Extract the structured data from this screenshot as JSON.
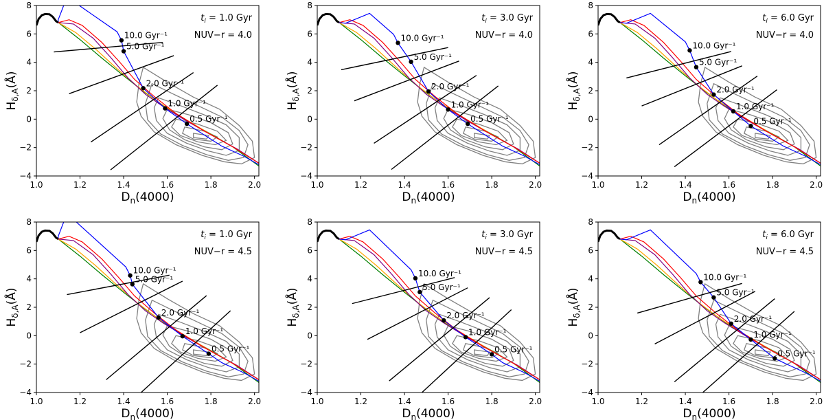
{
  "chart_data": {
    "type": "line",
    "panels": [
      {
        "ti": "1.0",
        "nuvr": "4.0",
        "dots": [
          [
            1.39,
            5.55
          ],
          [
            1.4,
            4.78
          ],
          [
            1.49,
            2.18
          ],
          [
            1.59,
            0.76
          ],
          [
            1.69,
            -0.33
          ]
        ],
        "cuts": [
          [
            1.08,
            4.73,
            1.58,
            5.4
          ],
          [
            1.15,
            1.79,
            1.63,
            4.47
          ],
          [
            1.25,
            -1.61,
            1.72,
            3.28
          ],
          [
            1.34,
            -3.57,
            1.83,
            2.39
          ]
        ]
      },
      {
        "ti": "3.0",
        "nuvr": "4.0",
        "dots": [
          [
            1.37,
            5.37
          ],
          [
            1.43,
            4.04
          ],
          [
            1.51,
            1.95
          ],
          [
            1.6,
            0.68
          ],
          [
            1.69,
            -0.33
          ]
        ],
        "cuts": [
          [
            1.11,
            3.48,
            1.6,
            5.04
          ],
          [
            1.17,
            1.29,
            1.65,
            4.09
          ],
          [
            1.26,
            -1.7,
            1.73,
            3.08
          ],
          [
            1.34,
            -3.54,
            1.83,
            2.34
          ]
        ]
      },
      {
        "ti": "6.0",
        "nuvr": "4.0",
        "dots": [
          [
            1.42,
            4.84
          ],
          [
            1.45,
            3.66
          ],
          [
            1.53,
            1.73
          ],
          [
            1.62,
            0.55
          ],
          [
            1.7,
            -0.48
          ]
        ],
        "cuts": [
          [
            1.13,
            2.9,
            1.61,
            4.76
          ],
          [
            1.2,
            0.93,
            1.66,
            3.75
          ],
          [
            1.28,
            -1.8,
            1.73,
            3.03
          ],
          [
            1.35,
            -3.35,
            1.82,
            2.07
          ]
        ]
      },
      {
        "ti": "1.0",
        "nuvr": "4.5",
        "dots": [
          [
            1.43,
            4.24
          ],
          [
            1.44,
            3.62
          ],
          [
            1.56,
            1.28
          ],
          [
            1.67,
            -0.04
          ],
          [
            1.79,
            -1.27
          ]
        ],
        "cuts": [
          [
            1.14,
            2.89,
            1.61,
            4.26
          ],
          [
            1.2,
            0.21,
            1.67,
            3.84
          ],
          [
            1.32,
            -3.1,
            1.78,
            2.82
          ],
          [
            1.48,
            -4.0,
            1.89,
            1.76
          ]
        ]
      },
      {
        "ti": "3.0",
        "nuvr": "4.5",
        "dots": [
          [
            1.45,
            4.04
          ],
          [
            1.47,
            3.07
          ],
          [
            1.58,
            1.08
          ],
          [
            1.68,
            -0.1
          ],
          [
            1.8,
            -1.31
          ]
        ],
        "cuts": [
          [
            1.16,
            2.26,
            1.63,
            4.09
          ],
          [
            1.23,
            -0.26,
            1.69,
            3.37
          ],
          [
            1.33,
            -3.18,
            1.79,
            2.68
          ],
          [
            1.48,
            -4.0,
            1.89,
            1.83
          ]
        ]
      },
      {
        "ti": "6.0",
        "nuvr": "4.5",
        "dots": [
          [
            1.47,
            3.77
          ],
          [
            1.53,
            2.69
          ],
          [
            1.61,
            0.85
          ],
          [
            1.7,
            -0.27
          ],
          [
            1.81,
            -1.6
          ]
        ],
        "cuts": [
          [
            1.18,
            1.59,
            1.66,
            3.68
          ],
          [
            1.26,
            -0.58,
            1.72,
            3.12
          ],
          [
            1.35,
            -3.25,
            1.81,
            2.6
          ],
          [
            1.48,
            -4.0,
            1.9,
            1.71
          ]
        ]
      }
    ],
    "annotation_template": {
      "ti_prefix": "t",
      "ti_sub": "i",
      "ti_eq": " = ",
      "ti_unit": " Gyr",
      "nuvr_prefix": "NUV−r = "
    },
    "rate_labels": [
      "10.0 Gyr⁻¹",
      "5.0 Gyr⁻¹",
      "2.0 Gyr⁻¹",
      "1.0 Gyr⁻¹",
      "0.5 Gyr⁻¹"
    ],
    "xlabel": {
      "main": "D",
      "sub": "n",
      "rest": "(4000)"
    },
    "ylabel": {
      "main": "H",
      "sub": "δ,A",
      "rest": "(Å)"
    },
    "xlim": [
      1.0,
      2.02
    ],
    "ylim": [
      -4,
      8
    ],
    "xticks": [
      "1.0",
      "1.2",
      "1.4",
      "1.6",
      "1.8",
      "2.0"
    ],
    "yticks": [
      "−4",
      "−2",
      "0",
      "2",
      "4",
      "6",
      "8"
    ],
    "colors": {
      "track": "#000000",
      "blue": "#0000ff",
      "red": "#ff0000",
      "purple": "#800080",
      "orange": "#ffa500",
      "green": "#008000",
      "contour": "#808080",
      "cut": "#000000"
    }
  }
}
